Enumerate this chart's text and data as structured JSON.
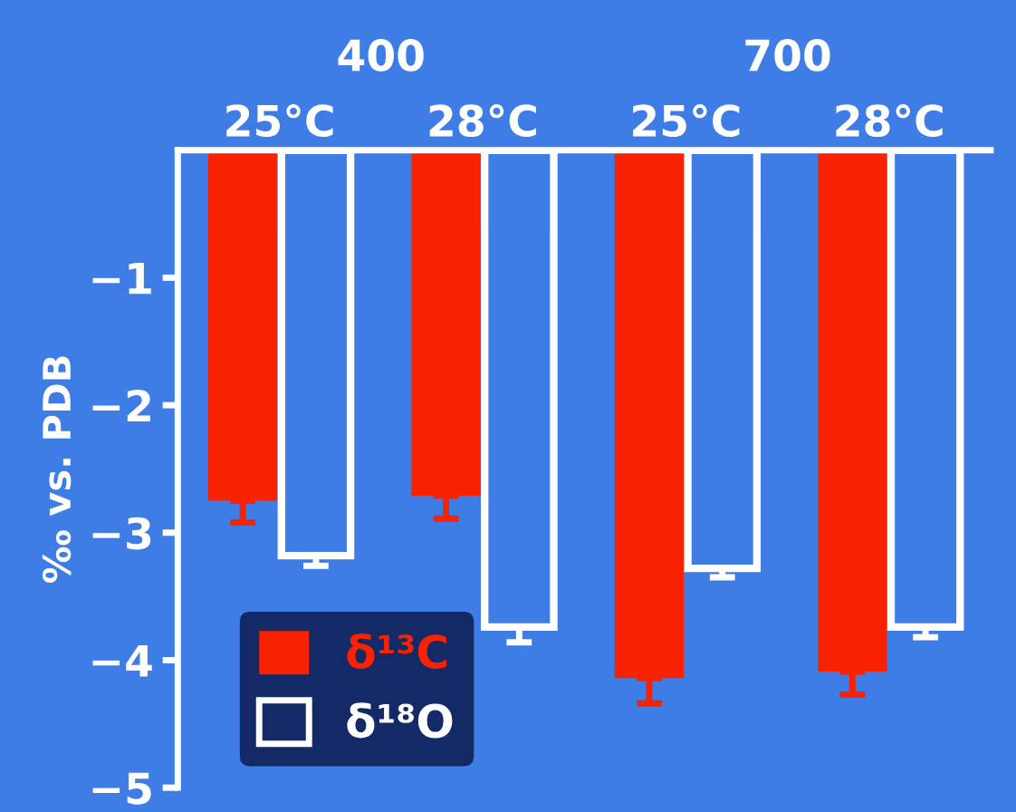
{
  "chart_data": {
    "type": "bar",
    "ylabel": "‰ vs. PDB",
    "categories": [
      "25°C",
      "28°C",
      "25°C",
      "28°C"
    ],
    "annotations": [
      "400",
      "700"
    ],
    "series": [
      {
        "name": "δ¹³C",
        "color": "#f82200",
        "values": [
          -2.75,
          -2.71,
          -4.14,
          -4.09
        ],
        "errors": [
          0.17,
          0.18,
          0.2,
          0.18
        ]
      },
      {
        "name": "δ¹⁸O",
        "color": "#ffffff",
        "values": [
          -3.18,
          -3.74,
          -3.28,
          -3.74
        ],
        "errors": [
          0.08,
          0.12,
          0.07,
          0.08
        ]
      }
    ],
    "ylim": [
      -5,
      0
    ],
    "yticks": [
      -1,
      -2,
      -3,
      -4,
      -5
    ],
    "grid": false,
    "legend": "bottom left"
  }
}
